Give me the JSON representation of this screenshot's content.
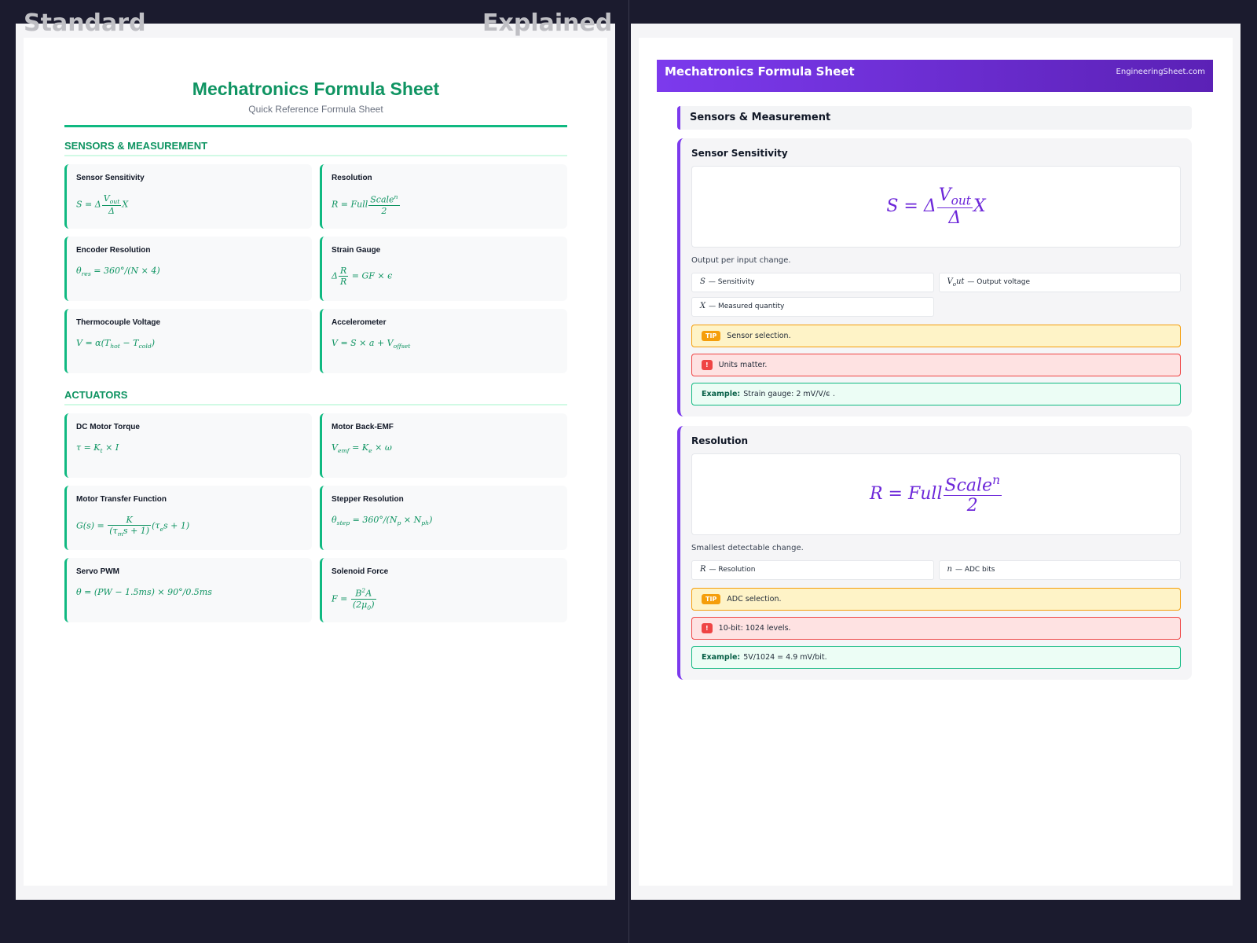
{
  "labels": {
    "standard": "Standard",
    "explained": "Explained"
  },
  "standard": {
    "title": "Mechatronics Formula Sheet",
    "subtitle": "Quick Reference Formula Sheet",
    "sections": [
      {
        "heading": "SENSORS & MEASUREMENT",
        "cards": [
          {
            "name": "Sensor Sensitivity",
            "formula": [
              "S = Δ",
              {
                "frac": [
                  [
                    "V",
                    {
                      "sub": "out"
                    }
                  ],
                  [
                    "Δ"
                  ]
                ]
              },
              "X"
            ]
          },
          {
            "name": "Resolution",
            "formula": [
              "R = Full",
              {
                "frac": [
                  [
                    "Scale",
                    {
                      "sup": "n"
                    }
                  ],
                  [
                    "2"
                  ]
                ]
              }
            ]
          },
          {
            "name": "Encoder Resolution",
            "formula": [
              "θ",
              {
                "sub": "res"
              },
              " = 360°/(N × 4)"
            ]
          },
          {
            "name": "Strain Gauge",
            "formula": [
              "Δ",
              {
                "frac": [
                  [
                    "R"
                  ],
                  [
                    "R"
                  ]
                ]
              },
              " = GF × ϵ"
            ]
          },
          {
            "name": "Thermocouple Voltage",
            "formula": [
              "V = α(T",
              {
                "sub": "hot"
              },
              " − T",
              {
                "sub": "cold"
              },
              ")"
            ]
          },
          {
            "name": "Accelerometer",
            "formula": [
              "V = S × a + V",
              {
                "sub": "offset"
              }
            ]
          }
        ]
      },
      {
        "heading": "ACTUATORS",
        "cards": [
          {
            "name": "DC Motor Torque",
            "formula": [
              "τ = K",
              {
                "sub": "t"
              },
              " × I"
            ]
          },
          {
            "name": "Motor Back-EMF",
            "formula": [
              "V",
              {
                "sub": "emf"
              },
              " = K",
              {
                "sub": "e"
              },
              " × ω"
            ]
          },
          {
            "name": "Motor Transfer Function",
            "formula": [
              "G(s) = ",
              {
                "frac": [
                  [
                    "K"
                  ],
                  [
                    "(τ",
                    {
                      "sub": "m"
                    },
                    "s + 1)"
                  ]
                ]
              },
              "(τ",
              {
                "sub": "e"
              },
              "s + 1)"
            ]
          },
          {
            "name": "Stepper Resolution",
            "formula": [
              "θ",
              {
                "sub": "step"
              },
              " = 360°/(N",
              {
                "sub": "p"
              },
              " × N",
              {
                "sub": "ph"
              },
              ")"
            ]
          },
          {
            "name": "Servo PWM",
            "formula": [
              "θ = (PW − 1.5ms) × 90°/0.5ms"
            ]
          },
          {
            "name": "Solenoid Force",
            "formula": [
              "F = ",
              {
                "frac": [
                  [
                    "B",
                    {
                      "sup": "2"
                    },
                    "A"
                  ],
                  [
                    "(2μ",
                    {
                      "sub": "0"
                    },
                    ")"
                  ]
                ]
              }
            ]
          }
        ]
      }
    ]
  },
  "explained": {
    "title": "Mechatronics Formula Sheet",
    "site": "EngineeringSheet.com",
    "section": "Sensors & Measurement",
    "cards": [
      {
        "name": "Sensor Sensitivity",
        "formula": [
          "S = Δ",
          {
            "frac": [
              [
                "V",
                {
                  "sub": "out"
                }
              ],
              [
                "Δ"
              ]
            ]
          },
          "X"
        ],
        "description": "Output per input change.",
        "variables": [
          {
            "symbol": [
              "S"
            ],
            "text": "— Sensitivity"
          },
          {
            "symbol": [
              "V",
              {
                "sub": "o"
              },
              "ut"
            ],
            "text": "— Output voltage"
          },
          {
            "symbol": [
              "X"
            ],
            "text": "— Measured quantity"
          }
        ],
        "tip_badge": "TIP",
        "tip": "Sensor selection.",
        "warning_badge": "!",
        "warning": "Units matter.",
        "example_label": "Example:",
        "example": "Strain gauge: 2 mV/V/ϵ ."
      },
      {
        "name": "Resolution",
        "formula": [
          "R = Full",
          {
            "frac": [
              [
                "Scale",
                {
                  "sup": "n"
                }
              ],
              [
                "2"
              ]
            ]
          }
        ],
        "description": "Smallest detectable change.",
        "variables": [
          {
            "symbol": [
              "R"
            ],
            "text": "— Resolution"
          },
          {
            "symbol": [
              "n"
            ],
            "text": "— ADC bits"
          }
        ],
        "tip_badge": "TIP",
        "tip": "ADC selection.",
        "warning_badge": "!",
        "warning": "10-bit: 1024 levels.",
        "example_label": "Example:",
        "example": "5V/1024 = 4.9 mV/bit."
      }
    ]
  }
}
